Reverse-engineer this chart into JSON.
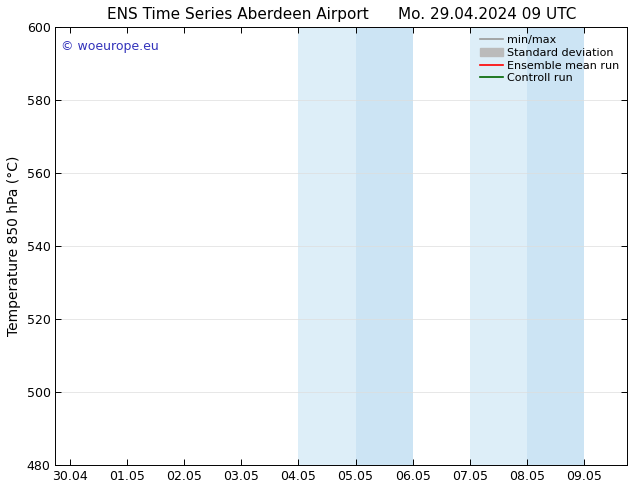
{
  "title": "ENS Time Series Aberdeen Airport      Mo. 29.04.2024 09 UTC",
  "ylabel": "Temperature 850 hPa (°C)",
  "ylim": [
    480,
    600
  ],
  "yticks": [
    480,
    500,
    520,
    540,
    560,
    580,
    600
  ],
  "xlim": [
    -0.25,
    9.75
  ],
  "xtick_labels": [
    "30.04",
    "01.05",
    "02.05",
    "03.05",
    "04.05",
    "05.05",
    "06.05",
    "07.05",
    "08.05",
    "09.05"
  ],
  "xtick_positions": [
    0,
    1,
    2,
    3,
    4,
    5,
    6,
    7,
    8,
    9
  ],
  "shaded_bands": [
    {
      "x_start": 4.0,
      "x_end": 5.0,
      "color": "#ddeef8"
    },
    {
      "x_start": 5.0,
      "x_end": 6.0,
      "color": "#cce4f4"
    },
    {
      "x_start": 7.0,
      "x_end": 8.0,
      "color": "#ddeef8"
    },
    {
      "x_start": 8.0,
      "x_end": 9.0,
      "color": "#cce4f4"
    }
  ],
  "watermark_text": "© woeurope.eu",
  "watermark_color": "#3333bb",
  "background_color": "#ffffff",
  "legend_items": [
    {
      "label": "min/max",
      "color": "#999999",
      "lw": 1.2,
      "ls": "-"
    },
    {
      "label": "Standard deviation",
      "color": "#bbbbbb",
      "lw": 6,
      "ls": "-"
    },
    {
      "label": "Ensemble mean run",
      "color": "#ff0000",
      "lw": 1.2,
      "ls": "-"
    },
    {
      "label": "Controll run",
      "color": "#006600",
      "lw": 1.2,
      "ls": "-"
    }
  ],
  "grid_color": "#dddddd",
  "spine_color": "#000000",
  "title_fontsize": 11,
  "tick_fontsize": 9,
  "label_fontsize": 10,
  "legend_fontsize": 8
}
